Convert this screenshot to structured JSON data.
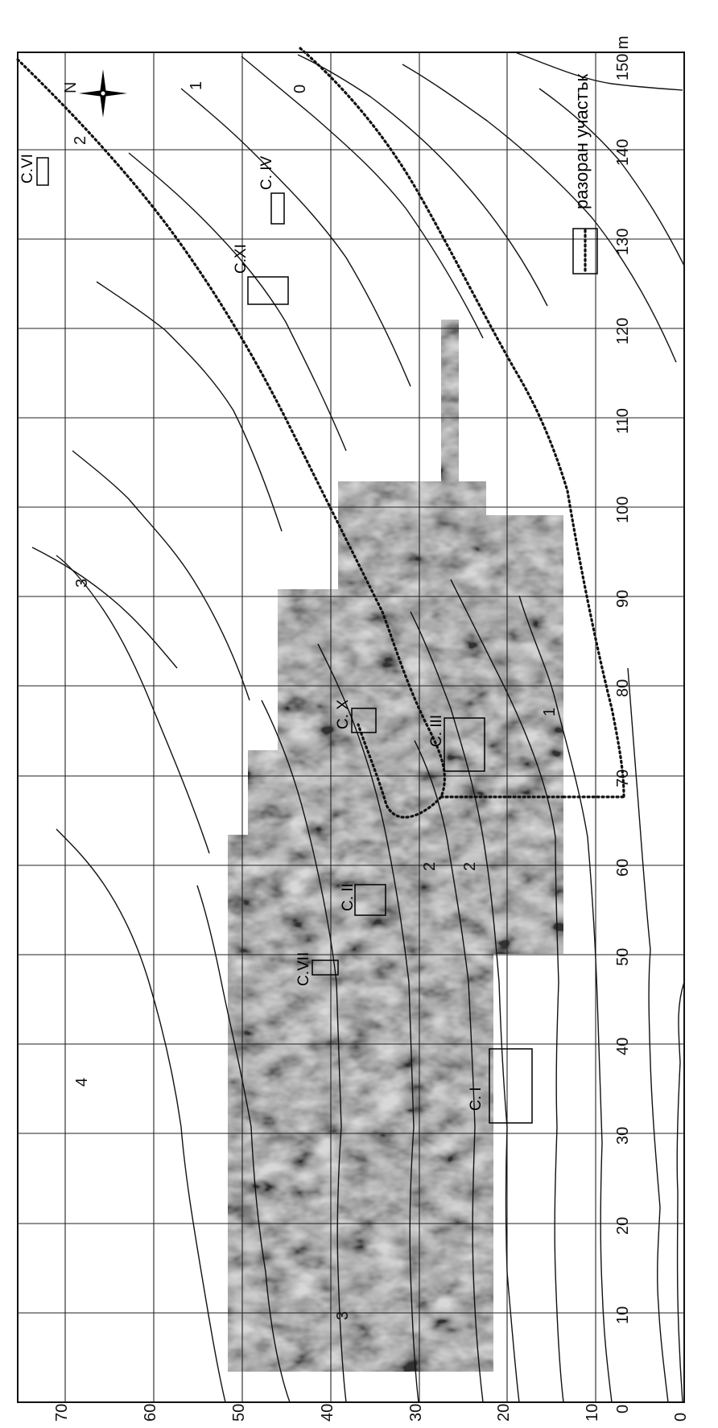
{
  "map": {
    "units_label": "150 m",
    "x_axis": {
      "ticks": [
        "0",
        "10",
        "20",
        "30",
        "40",
        "50",
        "60",
        "70",
        "80",
        "90",
        "100",
        "110",
        "120",
        "130",
        "140"
      ]
    },
    "y_axis": {
      "ticks": [
        "0",
        "10",
        "20",
        "30",
        "40",
        "50",
        "60",
        "70"
      ]
    },
    "structures": [
      {
        "id": "c1",
        "label": "C. I"
      },
      {
        "id": "c2",
        "label": "C. II"
      },
      {
        "id": "c3",
        "label": "C. III"
      },
      {
        "id": "c4",
        "label": "C. IV"
      },
      {
        "id": "c6",
        "label": "C.VI"
      },
      {
        "id": "c7",
        "label": "C.VII"
      },
      {
        "id": "c10",
        "label": "C. X"
      },
      {
        "id": "c11",
        "label": "C.XI"
      }
    ],
    "contour_labels": [
      "0",
      "1",
      "1",
      "2",
      "2",
      "2",
      "3",
      "3",
      "4"
    ],
    "legend": {
      "label": "разоран участък",
      "symbol": "dotted-line-box"
    },
    "icons": {
      "north_arrow": "compass-rose-icon",
      "north_letter": "N"
    },
    "colors": {
      "survey_background": "#8f8f8f",
      "ink": "#111111"
    }
  }
}
